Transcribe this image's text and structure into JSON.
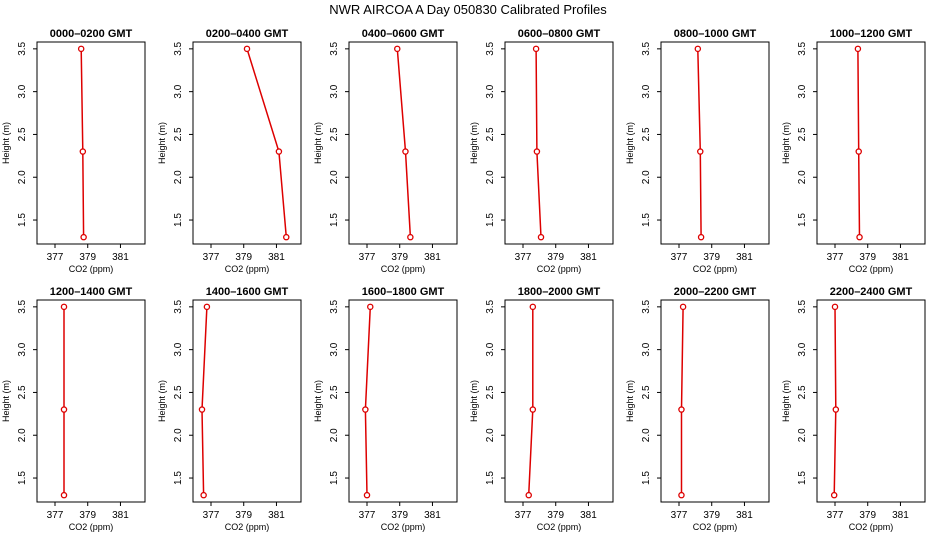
{
  "figure": {
    "title": "NWR AIRCOA A  Day 050830  Calibrated Profiles",
    "line_color": "#dd0000"
  },
  "chart_data": [
    {
      "type": "line",
      "title": "0000–0200 GMT",
      "xlabel": "CO2 (ppm)",
      "ylabel": "Height (m)",
      "xlim": [
        375.9,
        382.5
      ],
      "ylim": [
        1.22,
        3.58
      ],
      "xticks": [
        377,
        379,
        381
      ],
      "xtick_labels": [
        "377",
        "379",
        "381"
      ],
      "yticks": [
        1.5,
        2.0,
        2.5,
        3.0,
        3.5
      ],
      "ytick_labels": [
        "1.5",
        "2.0",
        "2.5",
        "3.0",
        "3.5"
      ],
      "series": [
        {
          "x": [
            378.6,
            378.7,
            378.75
          ],
          "y": [
            3.5,
            2.3,
            1.3
          ]
        }
      ]
    },
    {
      "type": "line",
      "title": "0200–0400 GMT",
      "xlabel": "CO2 (ppm)",
      "ylabel": "Height (m)",
      "xlim": [
        375.9,
        382.5
      ],
      "ylim": [
        1.22,
        3.58
      ],
      "xticks": [
        377,
        379,
        381
      ],
      "xtick_labels": [
        "377",
        "379",
        "381"
      ],
      "yticks": [
        1.5,
        2.0,
        2.5,
        3.0,
        3.5
      ],
      "ytick_labels": [
        "1.5",
        "2.0",
        "2.5",
        "3.0",
        "3.5"
      ],
      "series": [
        {
          "x": [
            379.2,
            381.15,
            381.6
          ],
          "y": [
            3.5,
            2.3,
            1.3
          ]
        }
      ]
    },
    {
      "type": "line",
      "title": "0400–0600 GMT",
      "xlabel": "CO2 (ppm)",
      "ylabel": "Height (m)",
      "xlim": [
        375.9,
        382.5
      ],
      "ylim": [
        1.22,
        3.58
      ],
      "xticks": [
        377,
        379,
        381
      ],
      "xtick_labels": [
        "377",
        "379",
        "381"
      ],
      "yticks": [
        1.5,
        2.0,
        2.5,
        3.0,
        3.5
      ],
      "ytick_labels": [
        "1.5",
        "2.0",
        "2.5",
        "3.0",
        "3.5"
      ],
      "series": [
        {
          "x": [
            378.85,
            379.35,
            379.65
          ],
          "y": [
            3.5,
            2.3,
            1.3
          ]
        }
      ]
    },
    {
      "type": "line",
      "title": "0600–0800 GMT",
      "xlabel": "CO2 (ppm)",
      "ylabel": "Height (m)",
      "xlim": [
        375.9,
        382.5
      ],
      "ylim": [
        1.22,
        3.58
      ],
      "xticks": [
        377,
        379,
        381
      ],
      "xtick_labels": [
        "377",
        "379",
        "381"
      ],
      "yticks": [
        1.5,
        2.0,
        2.5,
        3.0,
        3.5
      ],
      "ytick_labels": [
        "1.5",
        "2.0",
        "2.5",
        "3.0",
        "3.5"
      ],
      "series": [
        {
          "x": [
            377.8,
            377.85,
            378.1
          ],
          "y": [
            3.5,
            2.3,
            1.3
          ]
        }
      ]
    },
    {
      "type": "line",
      "title": "0800–1000 GMT",
      "xlabel": "CO2 (ppm)",
      "ylabel": "Height (m)",
      "xlim": [
        375.9,
        382.5
      ],
      "ylim": [
        1.22,
        3.58
      ],
      "xticks": [
        377,
        379,
        381
      ],
      "xtick_labels": [
        "377",
        "379",
        "381"
      ],
      "yticks": [
        1.5,
        2.0,
        2.5,
        3.0,
        3.5
      ],
      "ytick_labels": [
        "1.5",
        "2.0",
        "2.5",
        "3.0",
        "3.5"
      ],
      "series": [
        {
          "x": [
            378.15,
            378.3,
            378.35
          ],
          "y": [
            3.5,
            2.3,
            1.3
          ]
        }
      ]
    },
    {
      "type": "line",
      "title": "1000–1200 GMT",
      "xlabel": "CO2 (ppm)",
      "ylabel": "Height (m)",
      "xlim": [
        375.9,
        382.5
      ],
      "ylim": [
        1.22,
        3.58
      ],
      "xticks": [
        377,
        379,
        381
      ],
      "xtick_labels": [
        "377",
        "379",
        "381"
      ],
      "yticks": [
        1.5,
        2.0,
        2.5,
        3.0,
        3.5
      ],
      "ytick_labels": [
        "1.5",
        "2.0",
        "2.5",
        "3.0",
        "3.5"
      ],
      "series": [
        {
          "x": [
            378.4,
            378.45,
            378.5
          ],
          "y": [
            3.5,
            2.3,
            1.3
          ]
        }
      ]
    },
    {
      "type": "line",
      "title": "1200–1400 GMT",
      "xlabel": "CO2 (ppm)",
      "ylabel": "Height (m)",
      "xlim": [
        375.9,
        382.5
      ],
      "ylim": [
        1.22,
        3.58
      ],
      "xticks": [
        377,
        379,
        381
      ],
      "xtick_labels": [
        "377",
        "379",
        "381"
      ],
      "yticks": [
        1.5,
        2.0,
        2.5,
        3.0,
        3.5
      ],
      "ytick_labels": [
        "1.5",
        "2.0",
        "2.5",
        "3.0",
        "3.5"
      ],
      "series": [
        {
          "x": [
            377.55,
            377.55,
            377.55
          ],
          "y": [
            3.5,
            2.3,
            1.3
          ]
        }
      ]
    },
    {
      "type": "line",
      "title": "1400–1600 GMT",
      "xlabel": "CO2 (ppm)",
      "ylabel": "Height (m)",
      "xlim": [
        375.9,
        382.5
      ],
      "ylim": [
        1.22,
        3.58
      ],
      "xticks": [
        377,
        379,
        381
      ],
      "xtick_labels": [
        "377",
        "379",
        "381"
      ],
      "yticks": [
        1.5,
        2.0,
        2.5,
        3.0,
        3.5
      ],
      "ytick_labels": [
        "1.5",
        "2.0",
        "2.5",
        "3.0",
        "3.5"
      ],
      "series": [
        {
          "x": [
            376.75,
            376.45,
            376.55
          ],
          "y": [
            3.5,
            2.3,
            1.3
          ]
        }
      ]
    },
    {
      "type": "line",
      "title": "1600–1800 GMT",
      "xlabel": "CO2 (ppm)",
      "ylabel": "Height (m)",
      "xlim": [
        375.9,
        382.5
      ],
      "ylim": [
        1.22,
        3.58
      ],
      "xticks": [
        377,
        379,
        381
      ],
      "xtick_labels": [
        "377",
        "379",
        "381"
      ],
      "yticks": [
        1.5,
        2.0,
        2.5,
        3.0,
        3.5
      ],
      "ytick_labels": [
        "1.5",
        "2.0",
        "2.5",
        "3.0",
        "3.5"
      ],
      "series": [
        {
          "x": [
            377.2,
            376.9,
            377.0
          ],
          "y": [
            3.5,
            2.3,
            1.3
          ]
        }
      ]
    },
    {
      "type": "line",
      "title": "1800–2000 GMT",
      "xlabel": "CO2 (ppm)",
      "ylabel": "Height (m)",
      "xlim": [
        375.9,
        382.5
      ],
      "ylim": [
        1.22,
        3.58
      ],
      "xticks": [
        377,
        379,
        381
      ],
      "xtick_labels": [
        "377",
        "379",
        "381"
      ],
      "yticks": [
        1.5,
        2.0,
        2.5,
        3.0,
        3.5
      ],
      "ytick_labels": [
        "1.5",
        "2.0",
        "2.5",
        "3.0",
        "3.5"
      ],
      "series": [
        {
          "x": [
            377.6,
            377.6,
            377.35
          ],
          "y": [
            3.5,
            2.3,
            1.3
          ]
        }
      ]
    },
    {
      "type": "line",
      "title": "2000–2200 GMT",
      "xlabel": "CO2 (ppm)",
      "ylabel": "Height (m)",
      "xlim": [
        375.9,
        382.5
      ],
      "ylim": [
        1.22,
        3.58
      ],
      "xticks": [
        377,
        379,
        381
      ],
      "xtick_labels": [
        "377",
        "379",
        "381"
      ],
      "yticks": [
        1.5,
        2.0,
        2.5,
        3.0,
        3.5
      ],
      "ytick_labels": [
        "1.5",
        "2.0",
        "2.5",
        "3.0",
        "3.5"
      ],
      "series": [
        {
          "x": [
            377.25,
            377.15,
            377.15
          ],
          "y": [
            3.5,
            2.3,
            1.3
          ]
        }
      ]
    },
    {
      "type": "line",
      "title": "2200–2400 GMT",
      "xlabel": "CO2 (ppm)",
      "ylabel": "Height (m)",
      "xlim": [
        375.9,
        382.5
      ],
      "ylim": [
        1.22,
        3.58
      ],
      "xticks": [
        377,
        379,
        381
      ],
      "xtick_labels": [
        "377",
        "379",
        "381"
      ],
      "yticks": [
        1.5,
        2.0,
        2.5,
        3.0,
        3.5
      ],
      "ytick_labels": [
        "1.5",
        "2.0",
        "2.5",
        "3.0",
        "3.5"
      ],
      "series": [
        {
          "x": [
            377.0,
            377.05,
            376.95
          ],
          "y": [
            3.5,
            2.3,
            1.3
          ]
        }
      ]
    }
  ]
}
